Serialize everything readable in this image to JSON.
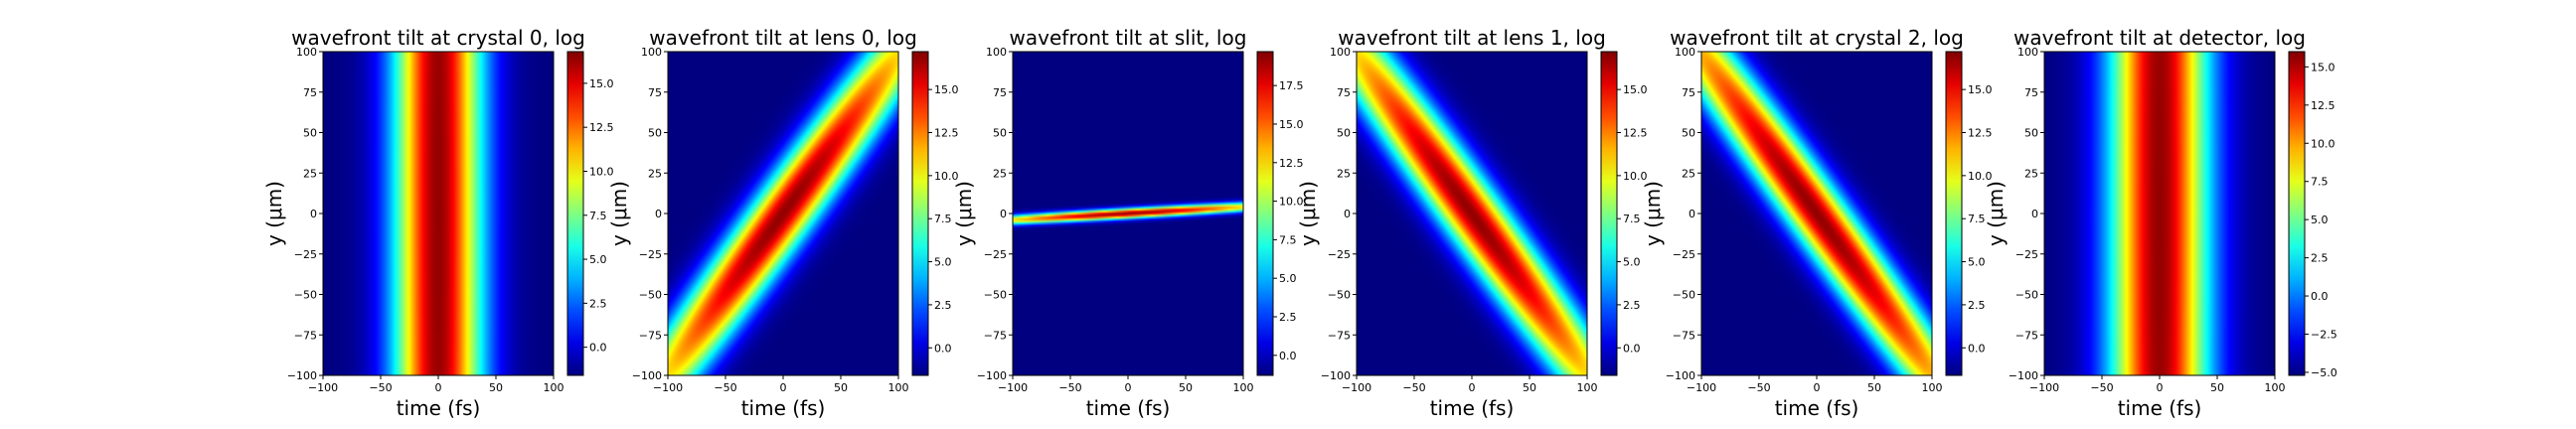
{
  "figure": {
    "background": "#ffffff",
    "colormap": "jet"
  },
  "chart_data": [
    {
      "type": "heatmap",
      "title": "wavefront tilt at crystal 0, log",
      "xlabel": "time (fs)",
      "ylabel": "y (μm)",
      "xlim": [
        -100,
        100
      ],
      "ylim": [
        -100,
        100
      ],
      "xticks": [
        "−100",
        "−50",
        "0",
        "50",
        "100"
      ],
      "yticks": [
        "100",
        "75",
        "50",
        "25",
        "0",
        "−25",
        "−50",
        "−75",
        "−100"
      ],
      "colorbar": {
        "range": [
          -1.6,
          16.8
        ],
        "ticks": [
          "0.0",
          "2.5",
          "5.0",
          "7.5",
          "10.0",
          "12.5",
          "15.0"
        ]
      },
      "pattern": {
        "tilt_fs_per_um": 0.0,
        "time_center_fs": 0,
        "time_width_fs": 27,
        "y_width_um": 800,
        "y_offset_um": 0
      }
    },
    {
      "type": "heatmap",
      "title": "wavefront tilt at lens 0, log",
      "xlabel": "time (fs)",
      "ylabel": "y (μm)",
      "xlim": [
        -100,
        100
      ],
      "ylim": [
        -100,
        100
      ],
      "xticks": [
        "−100",
        "−50",
        "0",
        "50",
        "100"
      ],
      "yticks": [
        "100",
        "75",
        "50",
        "25",
        "0",
        "−25",
        "−50",
        "−75",
        "−100"
      ],
      "colorbar": {
        "range": [
          -1.6,
          17.2
        ],
        "ticks": [
          "0.0",
          "2.5",
          "5.0",
          "7.5",
          "10.0",
          "12.5",
          "15.0"
        ]
      },
      "pattern": {
        "tilt_fs_per_um": 1.0,
        "time_center_fs": 0,
        "time_width_fs": 22,
        "y_width_um": 110,
        "y_offset_um": 0
      }
    },
    {
      "type": "heatmap",
      "title": "wavefront tilt at slit, log",
      "xlabel": "time (fs)",
      "ylabel": "y (μm)",
      "xlim": [
        -100,
        100
      ],
      "ylim": [
        -100,
        100
      ],
      "xticks": [
        "−100",
        "−50",
        "0",
        "50",
        "100"
      ],
      "yticks": [
        "100",
        "75",
        "50",
        "25",
        "0",
        "−25",
        "−50",
        "−75",
        "−100"
      ],
      "colorbar": {
        "range": [
          -1.3,
          19.7
        ],
        "ticks": [
          "0.0",
          "2.5",
          "5.0",
          "7.5",
          "10.0",
          "12.5",
          "15.0",
          "17.5"
        ]
      },
      "pattern": {
        "tilt_fs_per_um": 0.0,
        "time_center_fs": 0,
        "time_width_fs": 65,
        "y_width_um": 2.2,
        "y_offset_um": 0,
        "y_slope": 0.04
      }
    },
    {
      "type": "heatmap",
      "title": "wavefront tilt at lens 1, log",
      "xlabel": "time (fs)",
      "ylabel": "y (μm)",
      "xlim": [
        -100,
        100
      ],
      "ylim": [
        -100,
        100
      ],
      "xticks": [
        "−100",
        "−50",
        "0",
        "50",
        "100"
      ],
      "yticks": [
        "100",
        "75",
        "50",
        "25",
        "0",
        "−25",
        "−50",
        "−75",
        "−100"
      ],
      "colorbar": {
        "range": [
          -1.6,
          17.2
        ],
        "ticks": [
          "0.0",
          "2.5",
          "5.0",
          "7.5",
          "10.0",
          "12.5",
          "15.0"
        ]
      },
      "pattern": {
        "tilt_fs_per_um": -1.0,
        "time_center_fs": 0,
        "time_width_fs": 22,
        "y_width_um": 110,
        "y_offset_um": 0
      }
    },
    {
      "type": "heatmap",
      "title": "wavefront tilt at crystal 2, log",
      "xlabel": "time (fs)",
      "ylabel": "y (μm)",
      "xlim": [
        -100,
        100
      ],
      "ylim": [
        -100,
        100
      ],
      "xticks": [
        "−100",
        "−50",
        "0",
        "50",
        "100"
      ],
      "yticks": [
        "100",
        "75",
        "50",
        "25",
        "0",
        "−25",
        "−50",
        "−75",
        "−100"
      ],
      "colorbar": {
        "range": [
          -1.6,
          17.2
        ],
        "ticks": [
          "0.0",
          "2.5",
          "5.0",
          "7.5",
          "10.0",
          "12.5",
          "15.0"
        ]
      },
      "pattern": {
        "tilt_fs_per_um": -1.0,
        "time_center_fs": 0,
        "time_width_fs": 21,
        "y_width_um": 120,
        "y_offset_um": 0
      }
    },
    {
      "type": "heatmap",
      "title": "wavefront tilt at detector, log",
      "xlabel": "time (fs)",
      "ylabel": "y (μm)",
      "xlim": [
        -100,
        100
      ],
      "ylim": [
        -100,
        100
      ],
      "xticks": [
        "−100",
        "−50",
        "0",
        "50",
        "100"
      ],
      "yticks": [
        "100",
        "75",
        "50",
        "25",
        "0",
        "−25",
        "−50",
        "−75",
        "−100"
      ],
      "colorbar": {
        "range": [
          -5.2,
          16.0
        ],
        "ticks": [
          "−5.0",
          "−2.5",
          "0.0",
          "2.5",
          "5.0",
          "7.5",
          "10.0",
          "12.5",
          "15.0"
        ]
      },
      "pattern": {
        "tilt_fs_per_um": 0.0,
        "time_center_fs": 0,
        "time_width_fs": 30,
        "y_width_um": 800,
        "y_offset_um": 0
      }
    }
  ]
}
